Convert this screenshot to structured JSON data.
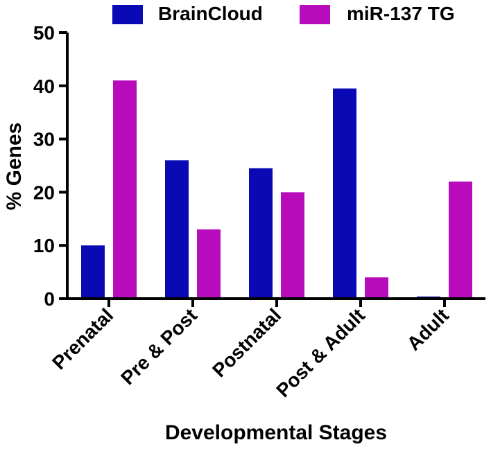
{
  "chart_data": {
    "type": "bar",
    "title": "",
    "xlabel": "Developmental Stages",
    "ylabel": "% Genes",
    "ylim": [
      0,
      50
    ],
    "yticks": [
      "0",
      "10",
      "20",
      "30",
      "40",
      "50"
    ],
    "grid": false,
    "legend": "top",
    "categories": [
      "Prenatal",
      "Pre & Post",
      "Postnatal",
      "Post & Adult",
      "Adult"
    ],
    "series": [
      {
        "name": "BrainCloud",
        "color": "#0a0ab4",
        "values": [
          10,
          26,
          24.5,
          39.5,
          0.4
        ]
      },
      {
        "name": "miR-137 TG",
        "color": "#b80cbc",
        "values": [
          41,
          13,
          20,
          4,
          22
        ]
      }
    ]
  }
}
